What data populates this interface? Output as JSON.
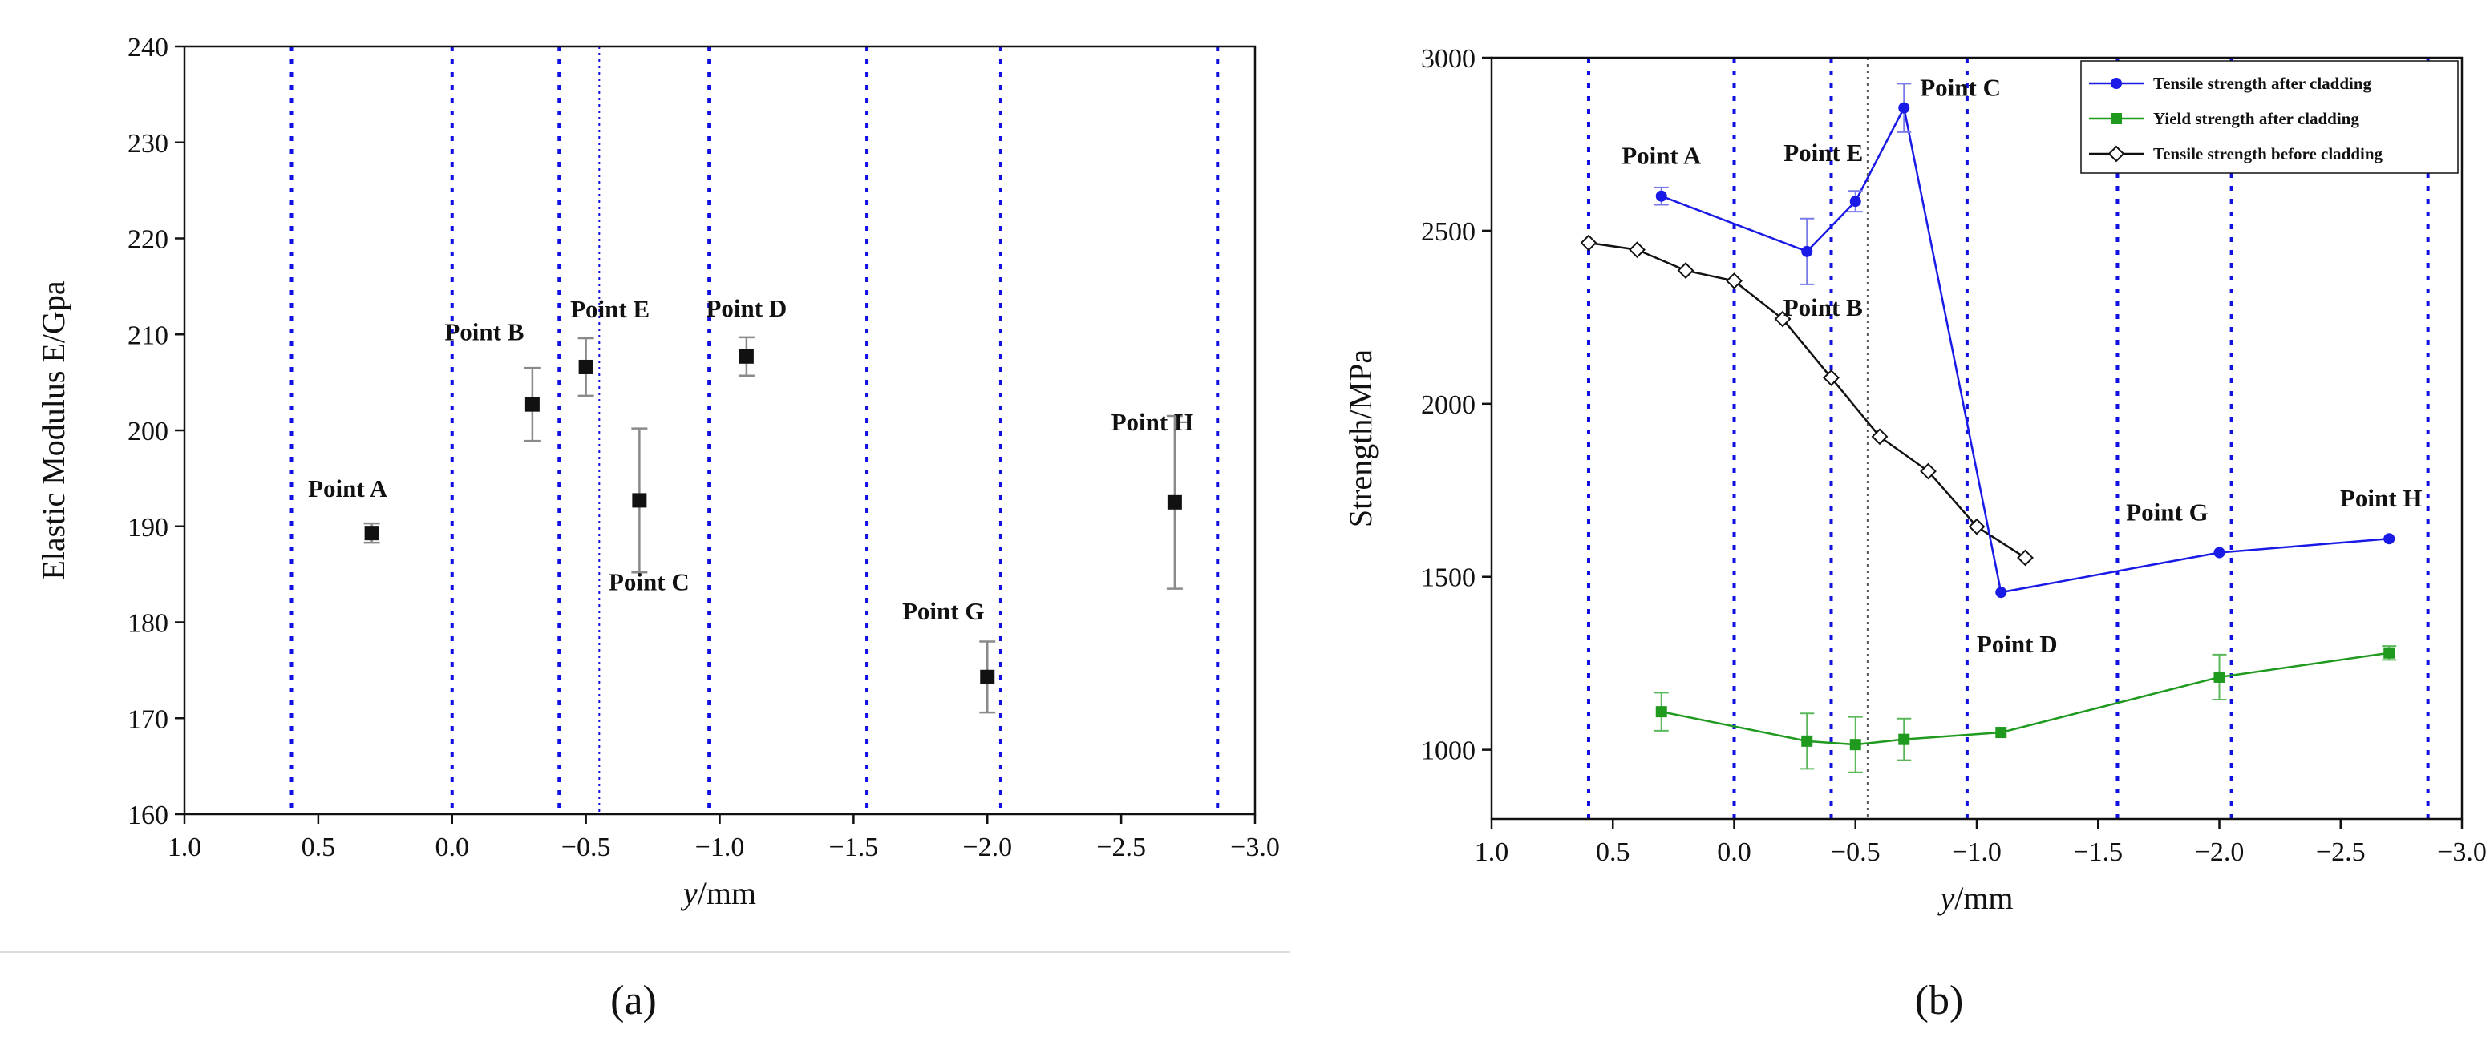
{
  "chart_data": [
    {
      "id": "a",
      "type": "scatter",
      "caption": "(a)",
      "xlabel_italic": "y",
      "xlabel_rest": "/mm",
      "ylabel": "Elastic Modulus E/Gpa",
      "xlim": [
        1.0,
        -3.0
      ],
      "ylim": [
        160,
        240
      ],
      "xticks": [
        "1.0",
        "0.5",
        "0.0",
        "-0.5",
        "-1.0",
        "-1.5",
        "-2.0",
        "-2.5",
        "-3.0"
      ],
      "xtick_values": [
        1.0,
        0.5,
        0.0,
        -0.5,
        -1.0,
        -1.5,
        -2.0,
        -2.5,
        -3.0
      ],
      "yticks": [
        160,
        170,
        180,
        190,
        200,
        210,
        220,
        230,
        240
      ],
      "vlines": [
        0.6,
        0.0,
        -0.4,
        -0.96,
        -1.55,
        -2.05,
        -2.86
      ],
      "vline_thin": -0.55,
      "colors": {
        "marker": "#111111",
        "error": "#8a8a8a",
        "vline": "#1010e0"
      },
      "points": [
        {
          "label": "Point A",
          "x": 0.3,
          "y": 189.3,
          "err": 1.0
        },
        {
          "label": "Point B",
          "x": -0.3,
          "y": 202.7,
          "err": 3.8
        },
        {
          "label": "Point E",
          "x": -0.5,
          "y": 206.6,
          "err": 3.0
        },
        {
          "label": "Point C",
          "x": -0.7,
          "y": 192.7,
          "err": 7.5
        },
        {
          "label": "Point D",
          "x": -1.1,
          "y": 207.7,
          "err": 2.0
        },
        {
          "label": "Point G",
          "x": -2.0,
          "y": 174.3,
          "err": 3.7
        },
        {
          "label": "Point H",
          "x": -2.7,
          "y": 192.5,
          "err": 9.0
        }
      ]
    },
    {
      "id": "b",
      "type": "line",
      "caption": "(b)",
      "xlabel_italic": "y",
      "xlabel_rest": "/mm",
      "ylabel": "Strength/MPa",
      "xlim": [
        1.0,
        -3.0
      ],
      "ylim": [
        800,
        3000
      ],
      "xticks": [
        "1.0",
        "0.5",
        "0.0",
        "-0.5",
        "-1.0",
        "-1.5",
        "-2.0",
        "-2.5",
        "-3.0"
      ],
      "xtick_values": [
        1.0,
        0.5,
        0.0,
        -0.5,
        -1.0,
        -1.5,
        -2.0,
        -2.5,
        -3.0
      ],
      "yticks": [
        1000,
        1500,
        2000,
        2500,
        3000
      ],
      "vlines": [
        0.6,
        0.0,
        -0.4,
        -0.96,
        -1.58,
        -2.05,
        -2.86
      ],
      "vline_thin": -0.55,
      "legend": "top-right",
      "series": [
        {
          "name": "Tensile strength after cladding",
          "color": "#1a1ae6",
          "marker": "circle",
          "x": [
            0.3,
            -0.3,
            -0.5,
            -0.7,
            -1.1,
            -2.0,
            -2.7
          ],
          "y": [
            2600,
            2440,
            2585,
            2855,
            1455,
            1570,
            1610
          ],
          "err": [
            25,
            95,
            30,
            70,
            0,
            0,
            0
          ]
        },
        {
          "name": "Yield strength after cladding",
          "color": "#1f9a1f",
          "marker": "square",
          "x": [
            0.3,
            -0.3,
            -0.5,
            -0.7,
            -1.1,
            -2.0,
            -2.7
          ],
          "y": [
            1110,
            1025,
            1015,
            1030,
            1050,
            1210,
            1280
          ],
          "err": [
            55,
            80,
            80,
            60,
            0,
            65,
            20
          ]
        },
        {
          "name": "Tensile strength before cladding",
          "color": "#111111",
          "marker": "diamond",
          "x": [
            0.6,
            0.4,
            0.2,
            0.0,
            -0.2,
            -0.4,
            -0.6,
            -0.8,
            -1.0,
            -1.2
          ],
          "y": [
            2465,
            2445,
            2385,
            2355,
            2245,
            2075,
            1905,
            1805,
            1645,
            1555
          ],
          "err": []
        }
      ],
      "annotations": [
        {
          "label": "Point A",
          "x": 0.3,
          "y": 2600,
          "anchor": "above"
        },
        {
          "label": "Point E",
          "x": -0.5,
          "y": 2585,
          "anchor": "above-left"
        },
        {
          "label": "Point B",
          "x": -0.3,
          "y": 2440,
          "anchor": "below"
        },
        {
          "label": "Point C",
          "x": -0.7,
          "y": 2855,
          "anchor": "right"
        },
        {
          "label": "Point D",
          "x": -1.1,
          "y": 1455,
          "anchor": "below"
        },
        {
          "label": "Point  G",
          "x": -2.0,
          "y": 1570,
          "anchor": "above"
        },
        {
          "label": "Point H",
          "x": -2.7,
          "y": 1610,
          "anchor": "above"
        }
      ]
    }
  ]
}
